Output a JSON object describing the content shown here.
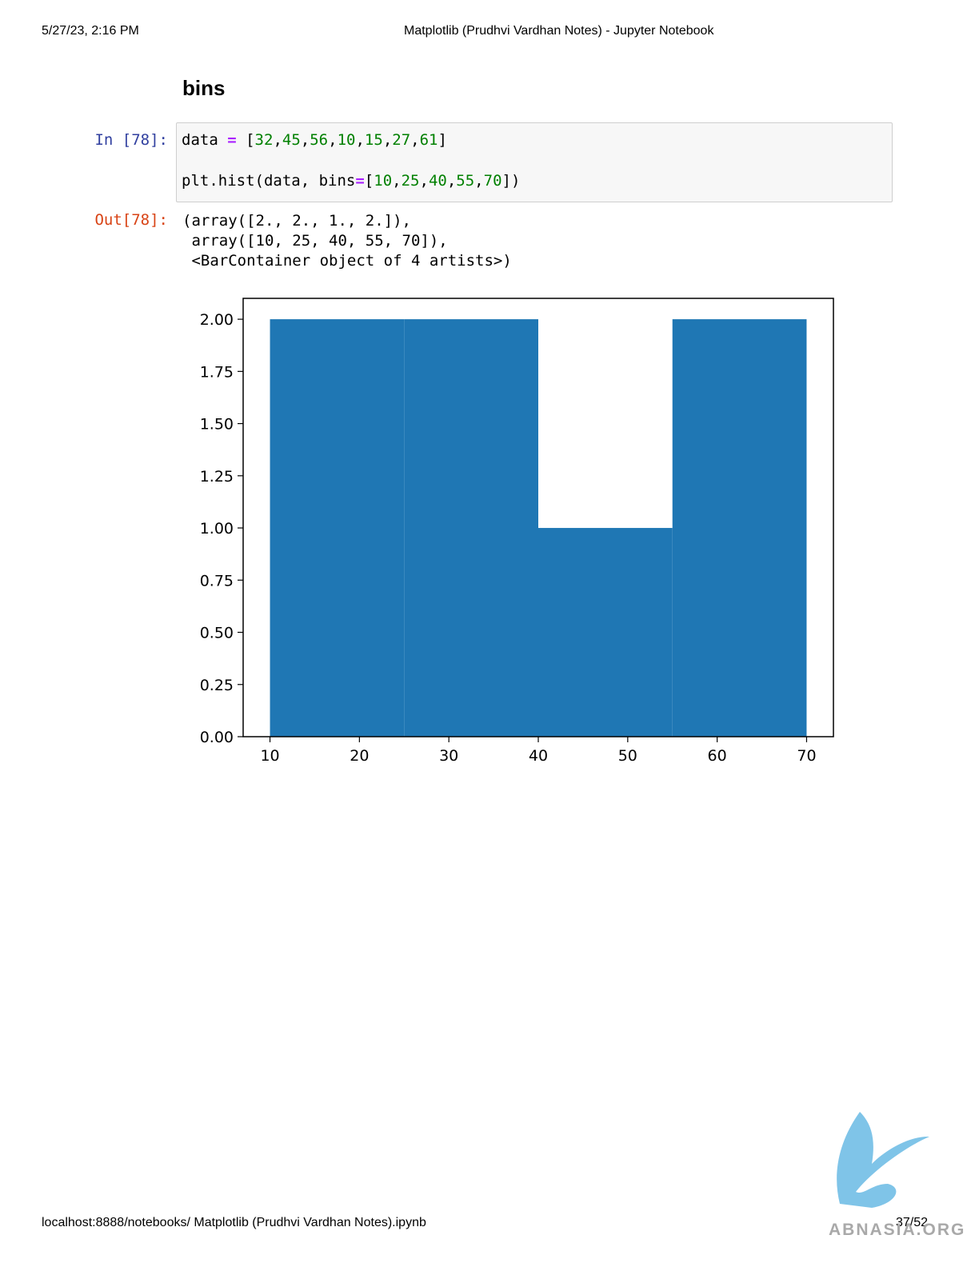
{
  "header": {
    "date": "5/27/23, 2:16 PM",
    "title": "Matplotlib (Prudhvi Vardhan Notes) - Jupyter Notebook"
  },
  "heading": "bins",
  "input": {
    "prompt": "In [78]:",
    "lines": [
      "data = [32,45,56,10,15,27,61]",
      "",
      "plt.hist(data, bins=[10,25,40,55,70])"
    ]
  },
  "output": {
    "prompt": "Out[78]:",
    "lines": [
      "(array([2., 2., 1., 2.]),",
      " array([10, 25, 40, 55, 70]),",
      " <BarContainer object of 4 artists>)"
    ]
  },
  "chart_data": {
    "type": "histogram",
    "bins": [
      10,
      25,
      40,
      55,
      70
    ],
    "counts": [
      2,
      2,
      1,
      2
    ],
    "color": "#1f77b4",
    "xlim": [
      7,
      73
    ],
    "ylim": [
      0,
      2.1
    ],
    "xticks": [
      10,
      20,
      30,
      40,
      50,
      60,
      70
    ],
    "yticks": [
      {
        "value": 0,
        "label": "0.00"
      },
      {
        "value": 0.25,
        "label": "0.25"
      },
      {
        "value": 0.5,
        "label": "0.50"
      },
      {
        "value": 0.75,
        "label": "0.75"
      },
      {
        "value": 1,
        "label": "1.00"
      },
      {
        "value": 1.25,
        "label": "1.25"
      },
      {
        "value": 1.5,
        "label": "1.50"
      },
      {
        "value": 1.75,
        "label": "1.75"
      },
      {
        "value": 2,
        "label": "2.00"
      }
    ]
  },
  "footer": {
    "url": "localhost:8888/notebooks/ Matplotlib (Prudhvi Vardhan Notes).ipynb",
    "page": "37/52"
  },
  "watermark": "ABNASIA.ORG"
}
